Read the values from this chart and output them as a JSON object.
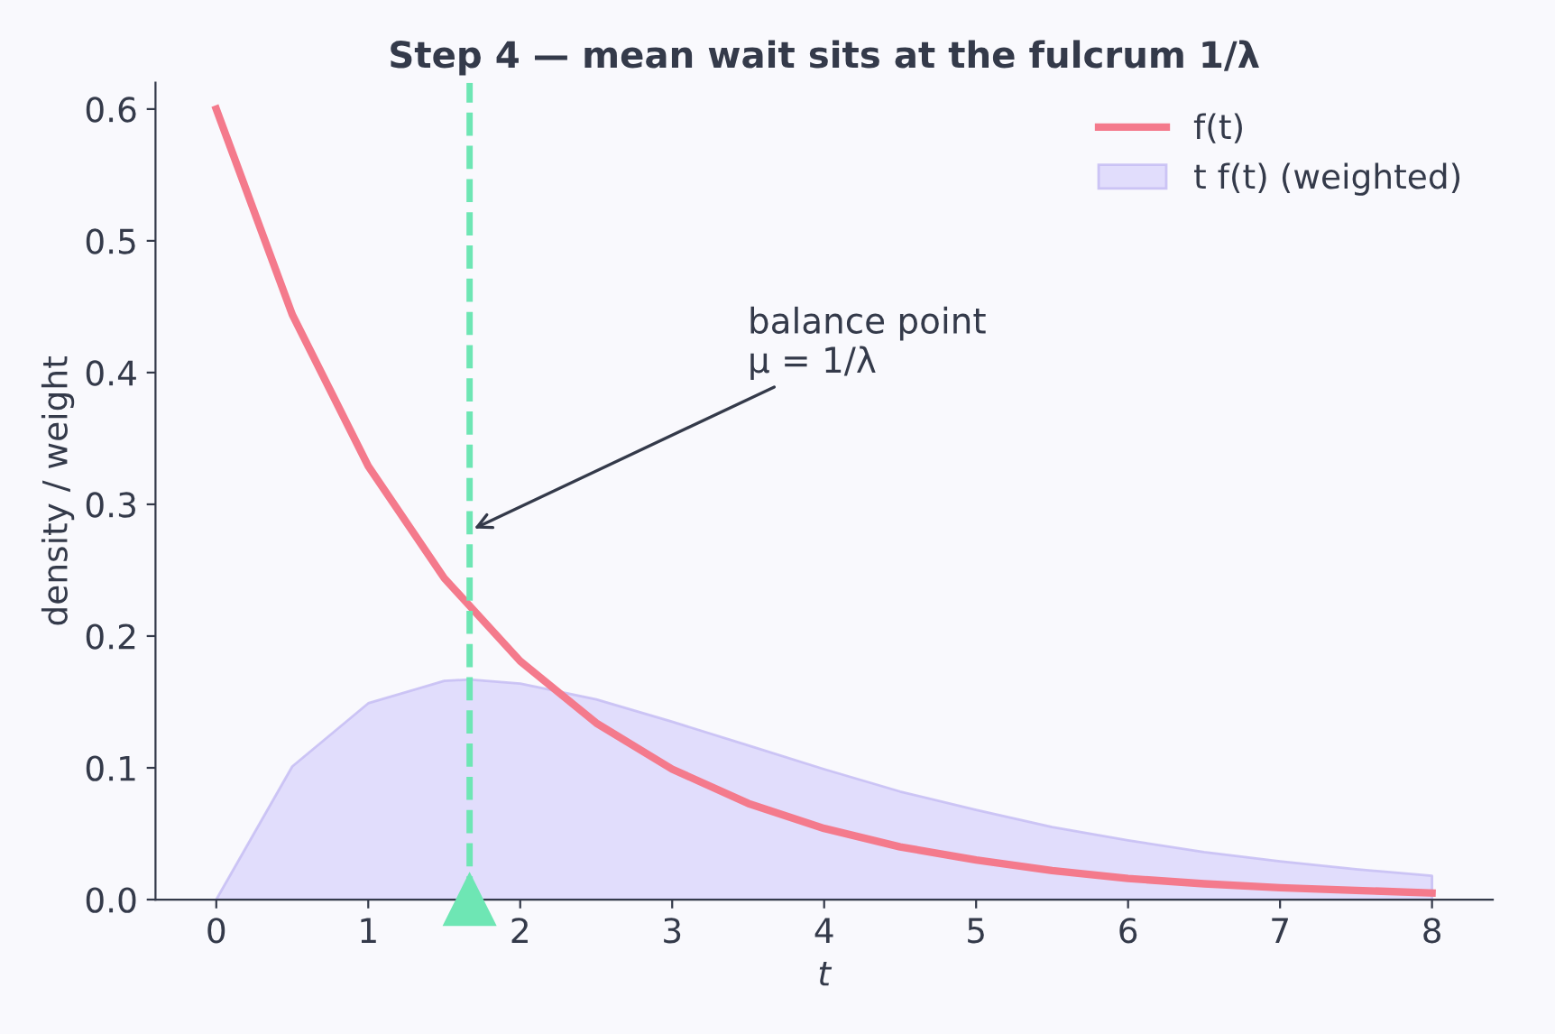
{
  "chart_data": {
    "type": "line",
    "title": "Step 4 — mean wait sits at the fulcrum 1/λ",
    "xlabel": "t",
    "ylabel": "density / weight",
    "series": [
      {
        "name": "f(t)",
        "color": "#f47a8c",
        "x": [
          0,
          0.5,
          1,
          1.5,
          2,
          2.5,
          3,
          3.5,
          4,
          4.5,
          5,
          5.5,
          6,
          6.5,
          7,
          7.5,
          8
        ],
        "values": [
          0.6,
          0.444,
          0.329,
          0.244,
          0.181,
          0.134,
          0.099,
          0.073,
          0.054,
          0.04,
          0.03,
          0.022,
          0.016,
          0.012,
          0.009,
          0.007,
          0.005
        ]
      },
      {
        "name": "t f(t) (weighted)",
        "type": "area",
        "color": "#ddd8fb",
        "x": [
          0,
          0.5,
          1,
          1.5,
          1.667,
          2,
          2.5,
          3,
          3.5,
          4,
          4.5,
          5,
          5.5,
          6,
          6.5,
          7,
          7.5,
          8
        ],
        "values": [
          0,
          0.101,
          0.149,
          0.166,
          0.167,
          0.164,
          0.152,
          0.135,
          0.117,
          0.099,
          0.082,
          0.068,
          0.055,
          0.045,
          0.036,
          0.029,
          0.023,
          0.018
        ]
      }
    ],
    "ref_lines": [
      {
        "axis": "x",
        "value": 1.667,
        "color": "#6ee6b4",
        "line_style": "dashed"
      }
    ],
    "annotations": [
      {
        "text": "balance point\nμ = 1/λ",
        "x": 1.667,
        "y": 0.28
      }
    ],
    "xlim": [
      -0.4,
      8.4
    ],
    "ylim": [
      0,
      0.62
    ],
    "xticks": [
      0,
      1,
      2,
      3,
      4,
      5,
      6,
      7,
      8
    ],
    "yticks": [
      {
        "value": 0,
        "label": "0.0"
      },
      0.1,
      0.2,
      0.3,
      0.4,
      0.5,
      0.6
    ],
    "legend": "top right",
    "grid": false
  }
}
